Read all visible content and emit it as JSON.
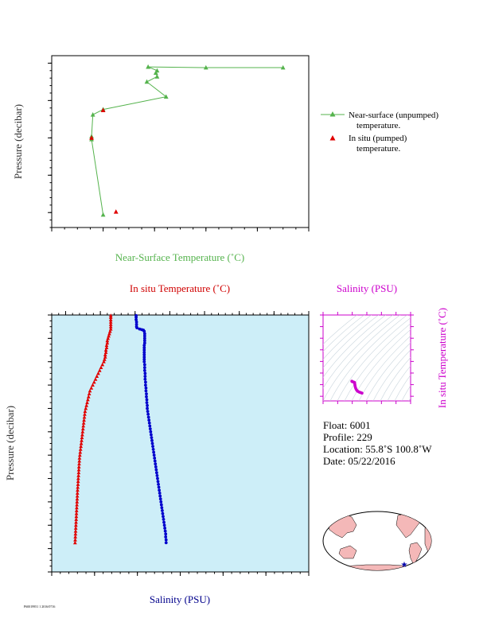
{
  "chart_data": [
    {
      "type": "line",
      "xlabel": "Near-Surface Temperature (˚C)",
      "ylabel": "Pressure (decibar)",
      "xlim": [
        6.468,
        6.488
      ],
      "ylim": [
        22,
        -1
      ],
      "xticks": [
        "6.468",
        "6.472",
        "6.476",
        "6.480",
        "6.484",
        "6.488"
      ],
      "yticks": [
        "0",
        "5",
        "10",
        "15",
        "20"
      ],
      "legend_position": "right",
      "series": [
        {
          "name": "Near-surface (unpumped) temperature.",
          "color": "#55b34d",
          "marker": "triangle",
          "points": [
            [
              6.486,
              0.6
            ],
            [
              6.48,
              0.6
            ],
            [
              6.4755,
              0.5
            ],
            [
              6.4762,
              1.0
            ],
            [
              6.4761,
              1.3
            ],
            [
              6.4762,
              1.8
            ],
            [
              6.4754,
              2.5
            ],
            [
              6.4769,
              4.5
            ],
            [
              6.472,
              6.2
            ],
            [
              6.4712,
              6.9
            ],
            [
              6.4711,
              9.8
            ],
            [
              6.4711,
              10.2
            ],
            [
              6.472,
              20.3
            ]
          ]
        },
        {
          "name": "In situ (pumped) temperature.",
          "color": "#e00000",
          "marker": "triangle",
          "points": [
            [
              6.472,
              6.3
            ],
            [
              6.4711,
              10.0
            ],
            [
              6.473,
              19.9
            ]
          ]
        }
      ]
    },
    {
      "type": "scatter",
      "ylabel": "Pressure (decibar)",
      "ylim": [
        2200,
        0
      ],
      "yticks": [
        "0",
        "200",
        "400",
        "600",
        "800",
        "1000",
        "1200",
        "1400",
        "1600",
        "1800",
        "2000",
        "2200"
      ],
      "top_axis": {
        "label": "In situ Temperature (˚C)",
        "range": [
          -2,
          35
        ],
        "ticks": [
          "0",
          "5",
          "10",
          "15",
          "20",
          "25",
          "30",
          "35"
        ],
        "color": "#d00000"
      },
      "bottom_axis": {
        "label": "Salinity (PSU)",
        "range": [
          32,
          38
        ],
        "ticks": [
          "32",
          "33",
          "34",
          "35",
          "36",
          "37",
          "38"
        ],
        "color": "#00008b"
      },
      "background": "#cdeef8",
      "series": [
        {
          "quantity": "temperature",
          "color": "#e00000",
          "marker": "triangle",
          "axis": "top",
          "points": [
            [
              6.5,
              5
            ],
            [
              6.5,
              20
            ],
            [
              6.5,
              40
            ],
            [
              6.5,
              60
            ],
            [
              6.5,
              80
            ],
            [
              6.5,
              100
            ],
            [
              6.5,
              120
            ],
            [
              6.4,
              140
            ],
            [
              6.3,
              160
            ],
            [
              6.2,
              180
            ],
            [
              6.1,
              200
            ],
            [
              6.0,
              220
            ],
            [
              6.0,
              240
            ],
            [
              5.9,
              260
            ],
            [
              5.9,
              280
            ],
            [
              5.8,
              300
            ],
            [
              5.8,
              320
            ],
            [
              5.7,
              340
            ],
            [
              5.7,
              360
            ],
            [
              5.6,
              380
            ],
            [
              5.5,
              400
            ],
            [
              5.3,
              425
            ],
            [
              5.1,
              450
            ],
            [
              4.9,
              475
            ],
            [
              4.7,
              500
            ],
            [
              4.5,
              525
            ],
            [
              4.3,
              550
            ],
            [
              4.1,
              575
            ],
            [
              3.9,
              600
            ],
            [
              3.7,
              625
            ],
            [
              3.5,
              650
            ],
            [
              3.4,
              675
            ],
            [
              3.3,
              700
            ],
            [
              3.2,
              725
            ],
            [
              3.1,
              750
            ],
            [
              3.0,
              775
            ],
            [
              2.9,
              800
            ],
            [
              2.8,
              825
            ],
            [
              2.75,
              850
            ],
            [
              2.7,
              875
            ],
            [
              2.65,
              900
            ],
            [
              2.6,
              925
            ],
            [
              2.55,
              950
            ],
            [
              2.5,
              975
            ],
            [
              2.45,
              1000
            ],
            [
              2.4,
              1025
            ],
            [
              2.35,
              1050
            ],
            [
              2.3,
              1075
            ],
            [
              2.25,
              1100
            ],
            [
              2.2,
              1125
            ],
            [
              2.15,
              1150
            ],
            [
              2.1,
              1175
            ],
            [
              2.05,
              1200
            ],
            [
              2.0,
              1225
            ],
            [
              1.98,
              1250
            ],
            [
              1.95,
              1275
            ],
            [
              1.92,
              1300
            ],
            [
              1.9,
              1325
            ],
            [
              1.88,
              1350
            ],
            [
              1.85,
              1375
            ],
            [
              1.82,
              1400
            ],
            [
              1.8,
              1425
            ],
            [
              1.78,
              1450
            ],
            [
              1.75,
              1475
            ],
            [
              1.72,
              1500
            ],
            [
              1.7,
              1525
            ],
            [
              1.68,
              1550
            ],
            [
              1.66,
              1575
            ],
            [
              1.64,
              1600
            ],
            [
              1.62,
              1625
            ],
            [
              1.6,
              1650
            ],
            [
              1.58,
              1675
            ],
            [
              1.56,
              1700
            ],
            [
              1.54,
              1725
            ],
            [
              1.52,
              1750
            ],
            [
              1.5,
              1775
            ],
            [
              1.48,
              1800
            ],
            [
              1.46,
              1825
            ],
            [
              1.44,
              1850
            ],
            [
              1.42,
              1875
            ],
            [
              1.4,
              1900
            ],
            [
              1.38,
              1925
            ],
            [
              1.36,
              1950
            ]
          ]
        },
        {
          "quantity": "salinity",
          "color": "#0000cc",
          "marker": "circle",
          "axis": "bottom",
          "points": [
            [
              33.97,
              5
            ],
            [
              33.97,
              20
            ],
            [
              33.97,
              40
            ],
            [
              33.98,
              60
            ],
            [
              33.98,
              80
            ],
            [
              33.98,
              100
            ],
            [
              33.99,
              110
            ],
            [
              34.05,
              120
            ],
            [
              34.1,
              125
            ],
            [
              34.14,
              130
            ],
            [
              34.16,
              140
            ],
            [
              34.17,
              160
            ],
            [
              34.17,
              180
            ],
            [
              34.17,
              200
            ],
            [
              34.17,
              220
            ],
            [
              34.17,
              240
            ],
            [
              34.16,
              260
            ],
            [
              34.16,
              280
            ],
            [
              34.16,
              300
            ],
            [
              34.16,
              320
            ],
            [
              34.16,
              340
            ],
            [
              34.16,
              360
            ],
            [
              34.16,
              380
            ],
            [
              34.16,
              400
            ],
            [
              34.17,
              425
            ],
            [
              34.17,
              450
            ],
            [
              34.17,
              475
            ],
            [
              34.18,
              500
            ],
            [
              34.18,
              525
            ],
            [
              34.18,
              550
            ],
            [
              34.19,
              575
            ],
            [
              34.19,
              600
            ],
            [
              34.2,
              625
            ],
            [
              34.2,
              650
            ],
            [
              34.21,
              675
            ],
            [
              34.21,
              700
            ],
            [
              34.22,
              725
            ],
            [
              34.22,
              750
            ],
            [
              34.23,
              775
            ],
            [
              34.23,
              800
            ],
            [
              34.24,
              825
            ],
            [
              34.25,
              850
            ],
            [
              34.26,
              875
            ],
            [
              34.27,
              900
            ],
            [
              34.28,
              925
            ],
            [
              34.29,
              950
            ],
            [
              34.3,
              975
            ],
            [
              34.31,
              1000
            ],
            [
              34.32,
              1025
            ],
            [
              34.33,
              1050
            ],
            [
              34.34,
              1075
            ],
            [
              34.35,
              1100
            ],
            [
              34.36,
              1125
            ],
            [
              34.37,
              1150
            ],
            [
              34.38,
              1175
            ],
            [
              34.39,
              1200
            ],
            [
              34.4,
              1225
            ],
            [
              34.41,
              1250
            ],
            [
              34.42,
              1275
            ],
            [
              34.43,
              1300
            ],
            [
              34.44,
              1325
            ],
            [
              34.45,
              1350
            ],
            [
              34.46,
              1375
            ],
            [
              34.47,
              1400
            ],
            [
              34.48,
              1425
            ],
            [
              34.49,
              1450
            ],
            [
              34.5,
              1475
            ],
            [
              34.51,
              1500
            ],
            [
              34.52,
              1525
            ],
            [
              34.53,
              1550
            ],
            [
              34.54,
              1575
            ],
            [
              34.55,
              1600
            ],
            [
              34.56,
              1625
            ],
            [
              34.57,
              1650
            ],
            [
              34.58,
              1675
            ],
            [
              34.59,
              1700
            ],
            [
              34.6,
              1725
            ],
            [
              34.61,
              1750
            ],
            [
              34.62,
              1775
            ],
            [
              34.63,
              1800
            ],
            [
              34.64,
              1825
            ],
            [
              34.65,
              1850
            ],
            [
              34.66,
              1875
            ],
            [
              34.66,
              1900
            ],
            [
              34.67,
              1925
            ],
            [
              34.67,
              1950
            ]
          ]
        }
      ]
    },
    {
      "type": "scatter",
      "xlabel": "Salinity (PSU)",
      "ylabel": "In situ Temperature (˚C)",
      "xlim": [
        32,
        38
      ],
      "ylim": [
        -2,
        35
      ],
      "xticks": [
        "32",
        "33",
        "34",
        "35",
        "36",
        "37",
        "38"
      ],
      "yticks": [
        "0",
        "5",
        "10",
        "15",
        "20",
        "25",
        "30",
        "35"
      ],
      "color": "#cc00cc",
      "points": [
        [
          33.97,
          6.5
        ],
        [
          33.98,
          6.4
        ],
        [
          34.0,
          6.3
        ],
        [
          34.05,
          6.2
        ],
        [
          34.1,
          6.1
        ],
        [
          34.14,
          6.0
        ],
        [
          34.16,
          5.9
        ],
        [
          34.17,
          5.7
        ],
        [
          34.17,
          5.4
        ],
        [
          34.18,
          5.0
        ],
        [
          34.19,
          4.6
        ],
        [
          34.2,
          4.2
        ],
        [
          34.22,
          3.8
        ],
        [
          34.24,
          3.4
        ],
        [
          34.27,
          3.0
        ],
        [
          34.31,
          2.6
        ],
        [
          34.35,
          2.3
        ],
        [
          34.4,
          2.05
        ],
        [
          34.45,
          1.9
        ],
        [
          34.5,
          1.75
        ],
        [
          34.55,
          1.65
        ],
        [
          34.6,
          1.5
        ],
        [
          34.65,
          1.42
        ],
        [
          34.67,
          1.36
        ]
      ]
    }
  ],
  "float_info": {
    "float": "Float:  6001",
    "profile": "Profile:  229",
    "location": "Location:  55.8˚S  100.8˚W",
    "date": "Date:  05/22/2016"
  },
  "map": {
    "land_color": "#f4b8b8",
    "marker_color": "#0000aa",
    "marker_lon": -100.8,
    "marker_lat": -55.8
  },
  "footer_text": "P60019951 1 2016/0716"
}
